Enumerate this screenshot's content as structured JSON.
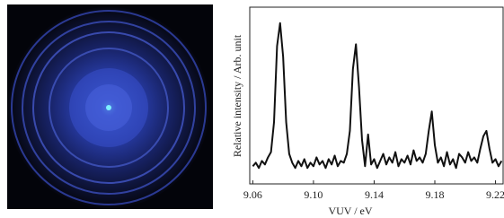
{
  "chart_data": {
    "type": "line",
    "xlabel": "VUV / eV",
    "ylabel": "Relative intensity / Arb. unit",
    "color": "#111111",
    "xlim": [
      9.058,
      9.225
    ],
    "ylim": [
      0,
      1
    ],
    "xticks": [
      9.06,
      {
        "value": 9.1,
        "label": "9.10"
      },
      9.14,
      9.18,
      9.22
    ],
    "x": [
      9.06,
      9.062,
      9.064,
      9.066,
      9.068,
      9.07,
      9.072,
      9.074,
      9.076,
      9.078,
      9.08,
      9.082,
      9.084,
      9.086,
      9.088,
      9.09,
      9.092,
      9.094,
      9.096,
      9.098,
      9.1,
      9.102,
      9.104,
      9.106,
      9.108,
      9.11,
      9.112,
      9.114,
      9.116,
      9.118,
      9.12,
      9.122,
      9.124,
      9.126,
      9.128,
      9.13,
      9.132,
      9.134,
      9.136,
      9.138,
      9.14,
      9.142,
      9.144,
      9.146,
      9.148,
      9.15,
      9.152,
      9.154,
      9.156,
      9.158,
      9.16,
      9.162,
      9.164,
      9.166,
      9.168,
      9.17,
      9.172,
      9.174,
      9.176,
      9.178,
      9.18,
      9.182,
      9.184,
      9.186,
      9.188,
      9.19,
      9.192,
      9.194,
      9.196,
      9.198,
      9.2,
      9.202,
      9.204,
      9.206,
      9.208,
      9.21,
      9.212,
      9.214,
      9.216,
      9.218,
      9.22,
      9.222,
      9.224
    ],
    "values": [
      0.1,
      0.12,
      0.09,
      0.13,
      0.11,
      0.15,
      0.18,
      0.35,
      0.78,
      0.91,
      0.72,
      0.35,
      0.17,
      0.12,
      0.09,
      0.13,
      0.1,
      0.14,
      0.09,
      0.12,
      0.1,
      0.15,
      0.11,
      0.13,
      0.09,
      0.14,
      0.11,
      0.16,
      0.1,
      0.13,
      0.12,
      0.17,
      0.3,
      0.65,
      0.79,
      0.55,
      0.25,
      0.1,
      0.28,
      0.11,
      0.14,
      0.09,
      0.13,
      0.17,
      0.11,
      0.15,
      0.12,
      0.18,
      0.1,
      0.14,
      0.12,
      0.16,
      0.11,
      0.19,
      0.13,
      0.15,
      0.12,
      0.17,
      0.3,
      0.41,
      0.22,
      0.12,
      0.15,
      0.1,
      0.18,
      0.11,
      0.14,
      0.09,
      0.17,
      0.15,
      0.12,
      0.18,
      0.13,
      0.15,
      0.12,
      0.2,
      0.27,
      0.3,
      0.2,
      0.12,
      0.14,
      0.1,
      0.13
    ]
  }
}
